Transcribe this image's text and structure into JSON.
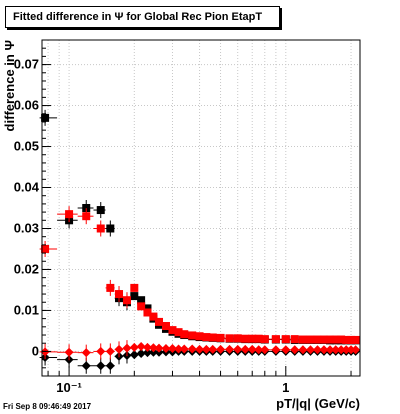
{
  "title": "Fitted difference in  Ψ  for Global Rec Pion EtapT",
  "date_stamp": "Fri Sep  8 09:46:49 2017",
  "colors": {
    "series_black": "#000000",
    "series_red": "#ff0000",
    "grid": "#c8c8c8"
  },
  "chart_data": {
    "type": "scatter",
    "title": "Fitted difference in  Ψ  for Global Rec Pion EtapT",
    "xlabel": "pT/|q| (GeV/c)",
    "ylabel": "difference in  Ψ",
    "x_scale": "log",
    "xlim": [
      0.075,
      2.2
    ],
    "ylim": [
      -0.006,
      0.076
    ],
    "x_ticks": [
      {
        "value": 0.1,
        "label": "10⁻¹"
      },
      {
        "value": 1,
        "label": "1"
      }
    ],
    "y_ticks": [
      {
        "value": 0,
        "label": "0"
      },
      {
        "value": 0.01,
        "label": "0.01"
      },
      {
        "value": 0.02,
        "label": "0.02"
      },
      {
        "value": 0.03,
        "label": "0.03"
      },
      {
        "value": 0.04,
        "label": "0.04"
      },
      {
        "value": 0.05,
        "label": "0.05"
      },
      {
        "value": 0.06,
        "label": "0.06"
      },
      {
        "value": 0.07,
        "label": "0.07"
      }
    ],
    "grid": true,
    "series": [
      {
        "color": "#000000",
        "marker": "square",
        "x": [
          0.0775,
          0.1,
          0.12,
          0.14,
          0.155,
          0.17,
          0.185,
          0.2,
          0.215,
          0.23,
          0.245,
          0.26,
          0.28,
          0.3,
          0.32,
          0.34,
          0.37,
          0.4,
          0.43,
          0.46,
          0.5,
          0.55,
          0.6,
          0.65,
          0.7,
          0.75,
          0.8,
          0.9,
          1.0,
          1.1,
          1.2,
          1.3,
          1.4,
          1.5,
          1.6,
          1.7,
          1.8,
          1.9,
          2.0,
          2.1
        ],
        "y": [
          0.057,
          0.032,
          0.035,
          0.0345,
          0.03,
          0.013,
          0.012,
          0.0135,
          0.0125,
          0.0105,
          0.008,
          0.0065,
          0.0055,
          0.0048,
          0.0043,
          0.004,
          0.0037,
          0.0035,
          0.0034,
          0.0033,
          0.0032,
          0.0031,
          0.0031,
          0.003,
          0.003,
          0.003,
          0.0029,
          0.0029,
          0.0029,
          0.0028,
          0.0028,
          0.0028,
          0.0028,
          0.0028,
          0.0027,
          0.0027,
          0.0027,
          0.0027,
          0.0027,
          0.0027
        ]
      },
      {
        "color": "#ff0000",
        "marker": "square",
        "x": [
          0.0775,
          0.1,
          0.12,
          0.14,
          0.155,
          0.17,
          0.185,
          0.2,
          0.215,
          0.23,
          0.245,
          0.26,
          0.28,
          0.3,
          0.32,
          0.34,
          0.37,
          0.4,
          0.43,
          0.46,
          0.5,
          0.55,
          0.6,
          0.65,
          0.7,
          0.75,
          0.8,
          0.9,
          1.0,
          1.1,
          1.2,
          1.3,
          1.4,
          1.5,
          1.6,
          1.7,
          1.8,
          1.9,
          2.0,
          2.1
        ],
        "y": [
          0.025,
          0.0335,
          0.033,
          0.03,
          0.0155,
          0.014,
          0.0125,
          0.0155,
          0.011,
          0.0095,
          0.0085,
          0.0072,
          0.0062,
          0.0052,
          0.0047,
          0.0042,
          0.0039,
          0.0037,
          0.0035,
          0.0034,
          0.0033,
          0.0032,
          0.0032,
          0.0031,
          0.0031,
          0.0031,
          0.003,
          0.003,
          0.003,
          0.003,
          0.0029,
          0.0029,
          0.0029,
          0.0029,
          0.0029,
          0.0029,
          0.0029,
          0.0028,
          0.0028,
          0.0028
        ]
      },
      {
        "color": "#000000",
        "marker": "diamond",
        "x": [
          0.0775,
          0.1,
          0.12,
          0.14,
          0.155,
          0.17,
          0.185,
          0.2,
          0.215,
          0.23,
          0.245,
          0.26,
          0.28,
          0.3,
          0.32,
          0.34,
          0.37,
          0.4,
          0.43,
          0.46,
          0.5,
          0.55,
          0.6,
          0.65,
          0.7,
          0.75,
          0.8,
          0.9,
          1.0,
          1.1,
          1.2,
          1.3,
          1.4,
          1.5,
          1.6,
          1.7,
          1.8,
          1.9,
          2.0,
          2.1
        ],
        "y": [
          -0.0015,
          -0.002,
          -0.0035,
          -0.0035,
          -0.0035,
          -0.0012,
          -0.001,
          -0.0008,
          -0.0005,
          -0.0003,
          -0.0002,
          -0.0002,
          -0.0001,
          -0.0001,
          0.0,
          0.0,
          0.0,
          0.0,
          0.0,
          0.0,
          0.0,
          0.0,
          0.0,
          0.0,
          0.0,
          0.0,
          0.0,
          0.0,
          0.0,
          0.0,
          0.0,
          0.0,
          0.0,
          0.0,
          0.0,
          0.0,
          0.0,
          0.0,
          0.0,
          0.0
        ]
      },
      {
        "color": "#ff0000",
        "marker": "diamond",
        "x": [
          0.0775,
          0.1,
          0.12,
          0.14,
          0.155,
          0.17,
          0.185,
          0.2,
          0.215,
          0.23,
          0.245,
          0.26,
          0.28,
          0.3,
          0.32,
          0.34,
          0.37,
          0.4,
          0.43,
          0.46,
          0.5,
          0.55,
          0.6,
          0.65,
          0.7,
          0.75,
          0.8,
          0.9,
          1.0,
          1.1,
          1.2,
          1.3,
          1.4,
          1.5,
          1.6,
          1.7,
          1.8,
          1.9,
          2.0,
          2.1
        ],
        "y": [
          -0.0001,
          -0.0002,
          -0.0003,
          0.0,
          0.0,
          0.0005,
          0.0008,
          0.001,
          0.0012,
          0.001,
          0.0009,
          0.0008,
          0.0007,
          0.0007,
          0.0006,
          0.0006,
          0.0006,
          0.0005,
          0.0005,
          0.0005,
          0.0005,
          0.0005,
          0.0005,
          0.0005,
          0.0005,
          0.0004,
          0.0004,
          0.0004,
          0.0004,
          0.0004,
          0.0004,
          0.0004,
          0.0004,
          0.0004,
          0.0004,
          0.0004,
          0.0004,
          0.0004,
          0.0004,
          0.0004
        ]
      }
    ]
  }
}
